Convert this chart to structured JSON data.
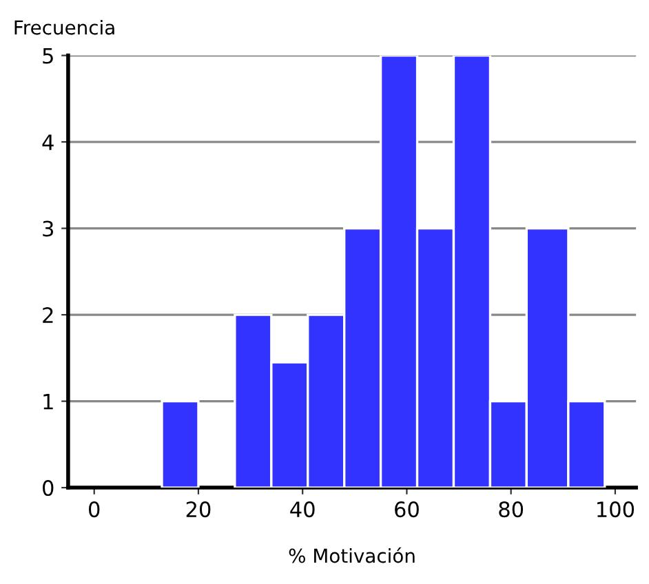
{
  "chart_data": {
    "type": "histogram",
    "ylabel": "Frecuencia",
    "xlabel": "% Motivación",
    "bins": [
      13,
      20,
      27,
      34,
      41,
      48,
      55,
      62,
      69,
      76,
      83,
      91,
      98
    ],
    "values": [
      1,
      0,
      2,
      1.45,
      2,
      3,
      5,
      3,
      5,
      1,
      3,
      1
    ],
    "color": "#3333ff",
    "xlim": [
      -5,
      104
    ],
    "xticks": [
      0,
      20,
      40,
      60,
      80,
      100
    ],
    "ylim": [
      0,
      5
    ],
    "yticks": [
      0,
      1,
      2,
      3,
      4,
      5
    ],
    "grid": "y"
  }
}
